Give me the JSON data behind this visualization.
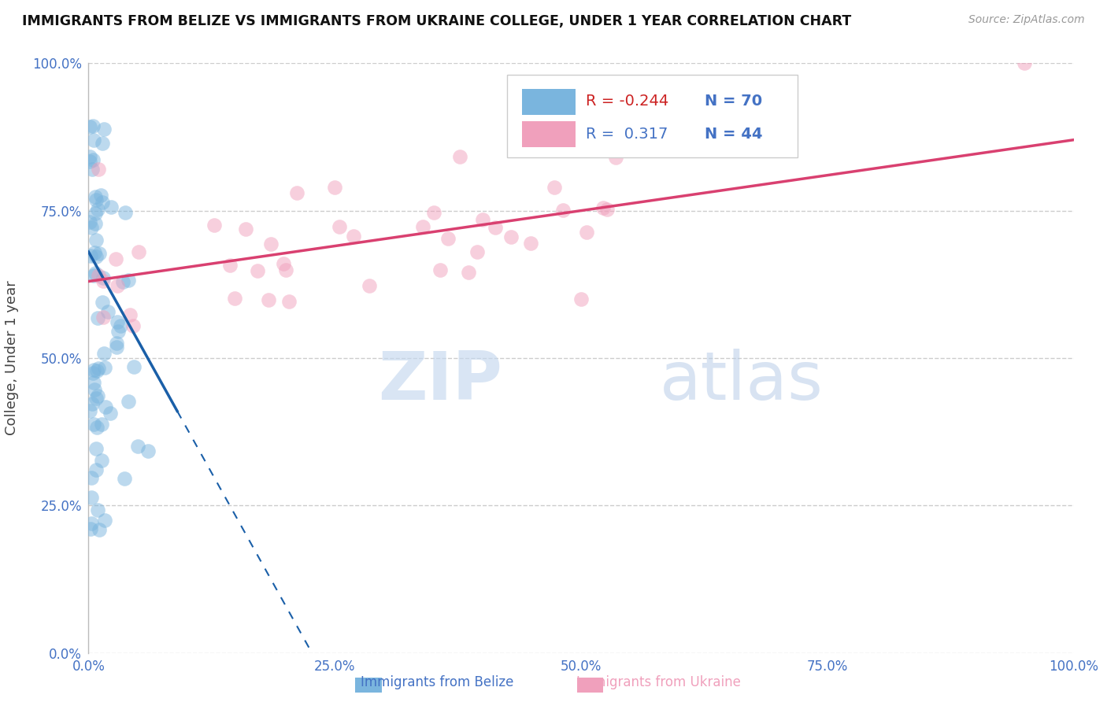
{
  "title": "IMMIGRANTS FROM BELIZE VS IMMIGRANTS FROM UKRAINE COLLEGE, UNDER 1 YEAR CORRELATION CHART",
  "source": "Source: ZipAtlas.com",
  "ylabel": "College, Under 1 year",
  "watermark_zip": "ZIP",
  "watermark_atlas": "atlas",
  "belize_R": -0.244,
  "belize_N": 70,
  "ukraine_R": 0.317,
  "ukraine_N": 44,
  "blue_scatter_color": "#7ab5de",
  "pink_scatter_color": "#f0a0bc",
  "blue_line_color": "#1a5fa8",
  "pink_line_color": "#d94070",
  "title_color": "#111111",
  "axis_tick_color": "#4472c4",
  "legend_R_belize_color": "#cc2222",
  "legend_R_ukraine_color": "#4472c4",
  "legend_N_color": "#4472c4",
  "grid_color": "#cccccc",
  "background_color": "#ffffff",
  "xlim": [
    0.0,
    1.0
  ],
  "ylim": [
    0.0,
    1.0
  ],
  "xticks": [
    0.0,
    0.25,
    0.5,
    0.75,
    1.0
  ],
  "yticks": [
    0.0,
    0.25,
    0.5,
    0.75,
    1.0
  ],
  "xticklabels": [
    "0.0%",
    "25.0%",
    "50.0%",
    "75.0%",
    "100.0%"
  ],
  "yticklabels": [
    "0.0%",
    "25.0%",
    "50.0%",
    "75.0%",
    "100.0%"
  ],
  "bottom_legend_belize": "Immigrants from Belize",
  "bottom_legend_ukraine": "Immigrants from Ukraine",
  "blue_line_intercept": 0.68,
  "blue_line_slope": -3.0,
  "pink_line_intercept": 0.63,
  "pink_line_slope": 0.24
}
